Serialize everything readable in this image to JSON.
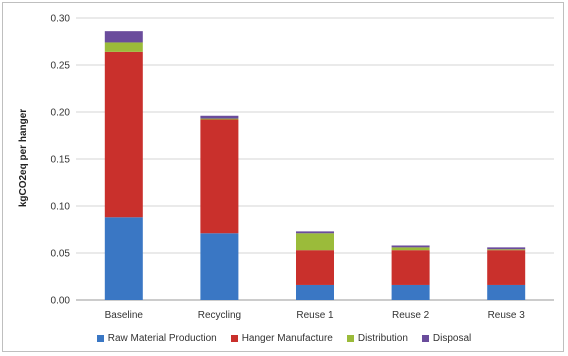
{
  "chart_data": {
    "type": "bar",
    "stacked": true,
    "categories": [
      "Baseline",
      "Recycling",
      "Reuse 1",
      "Reuse 2",
      "Reuse 3"
    ],
    "series": [
      {
        "name": "Raw Material Production",
        "color": "#3a77c4",
        "values": [
          0.088,
          0.071,
          0.016,
          0.016,
          0.016
        ]
      },
      {
        "name": "Hanger Manufacture",
        "color": "#c9302c",
        "values": [
          0.176,
          0.121,
          0.037,
          0.037,
          0.037
        ]
      },
      {
        "name": "Distribution",
        "color": "#9bbb3a",
        "values": [
          0.01,
          0.001,
          0.018,
          0.003,
          0.001
        ]
      },
      {
        "name": "Disposal",
        "color": "#6a4c9c",
        "values": [
          0.012,
          0.003,
          0.002,
          0.002,
          0.002
        ]
      }
    ],
    "ylabel": "kgCO2eq per hanger",
    "ylim": [
      0,
      0.3
    ],
    "yticks": [
      "0.00",
      "0.05",
      "0.10",
      "0.15",
      "0.20",
      "0.25",
      "0.30"
    ],
    "grid": true,
    "legend_position": "bottom"
  }
}
